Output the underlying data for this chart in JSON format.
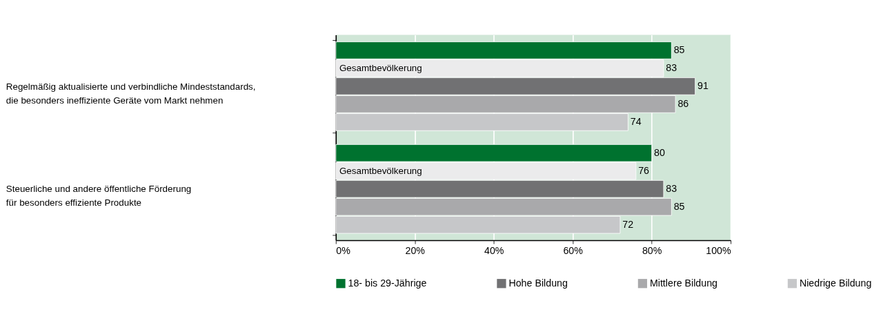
{
  "chart_data": {
    "type": "bar",
    "orientation": "horizontal",
    "categories": [
      "Regelmäßig aktualisierte und verbindliche Mindeststandards,\ndie besonders ineffiziente Geräte vom Markt nehmen",
      "Steuerliche und andere öffentliche Förderung\nfür besonders effiziente Produkte"
    ],
    "series": [
      {
        "name": "18- bis 29-Jährige",
        "color": "#00722f",
        "values": [
          85,
          80
        ]
      },
      {
        "color": "#ebebec",
        "values": [
          83,
          76
        ]
      },
      {
        "name": "Hohe Bildung",
        "color": "#717173",
        "values": [
          91,
          83
        ]
      },
      {
        "name": "Mittlere Bildung",
        "color": "#a9a9ab",
        "values": [
          86,
          85
        ]
      },
      {
        "name": "Niedrige Bildung",
        "color": "#c6c7c9",
        "values": [
          74,
          72
        ]
      }
    ],
    "annotations": [
      {
        "text": "Gesamtbevölkerung",
        "x": 0,
        "y": "Regelmäßig aktualisierte und verbindliche Mindeststandards,\ndie besonders ineffiziente Geräte vom Markt nehmen"
      },
      {
        "text": "Gesamtbevölkerung",
        "x": 0,
        "y": "Steuerliche und andere öffentliche Förderung\nfür besonders effiziente Produkte"
      }
    ],
    "xlim": [
      0,
      100
    ],
    "xticks": [
      {
        "value": 0,
        "label": "0%"
      },
      {
        "value": 20,
        "label": "20%"
      },
      {
        "value": 40,
        "label": "40%"
      },
      {
        "value": 60,
        "label": "60%"
      },
      {
        "value": 80,
        "label": "80%"
      },
      {
        "value": 100,
        "label": "100%"
      }
    ],
    "grid": "x",
    "legend": "bottom",
    "data_labels": true
  }
}
